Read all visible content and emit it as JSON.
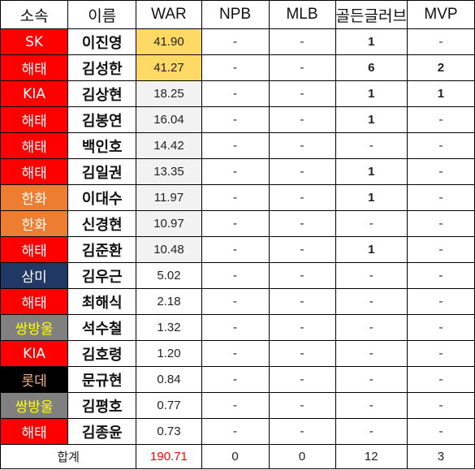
{
  "colors": {
    "red": "#FF0000",
    "orange": "#ED7D31",
    "navy": "#1F3864",
    "black": "#000000",
    "gray": "#808080",
    "yellow_text": "#FFFF00",
    "orange_text": "#F4B183",
    "gold_fill": "#FFD966",
    "light_fill": "#F2F2F2",
    "total_war_color": "#FF0000"
  },
  "headers": [
    "소속",
    "이름",
    "WAR",
    "NPB",
    "MLB",
    "골든글러브",
    "MVP"
  ],
  "rows": [
    {
      "team": "SK",
      "team_bg": "#FF0000",
      "team_fg": "#FFFFFF",
      "name": "이진영",
      "war": "41.90",
      "war_bg": "#FFD966",
      "npb": "-",
      "mlb": "-",
      "gg": "1",
      "mvp": "-"
    },
    {
      "team": "해태",
      "team_bg": "#FF0000",
      "team_fg": "#FFFFFF",
      "name": "김성한",
      "war": "41.27",
      "war_bg": "#FFD966",
      "npb": "-",
      "mlb": "-",
      "gg": "6",
      "mvp": "2"
    },
    {
      "team": "KIA",
      "team_bg": "#FF0000",
      "team_fg": "#FFFFFF",
      "name": "김상현",
      "war": "18.25",
      "war_bg": "#F2F2F2",
      "npb": "-",
      "mlb": "-",
      "gg": "1",
      "mvp": "1"
    },
    {
      "team": "해태",
      "team_bg": "#FF0000",
      "team_fg": "#FFFFFF",
      "name": "김봉연",
      "war": "16.04",
      "war_bg": "#F2F2F2",
      "npb": "-",
      "mlb": "-",
      "gg": "1",
      "mvp": "-"
    },
    {
      "team": "해태",
      "team_bg": "#FF0000",
      "team_fg": "#FFFFFF",
      "name": "백인호",
      "war": "14.42",
      "war_bg": "#F2F2F2",
      "npb": "-",
      "mlb": "-",
      "gg": "-",
      "mvp": "-"
    },
    {
      "team": "해태",
      "team_bg": "#FF0000",
      "team_fg": "#FFFFFF",
      "name": "김일권",
      "war": "13.35",
      "war_bg": "#F2F2F2",
      "npb": "-",
      "mlb": "-",
      "gg": "1",
      "mvp": "-"
    },
    {
      "team": "한화",
      "team_bg": "#ED7D31",
      "team_fg": "#FFFFFF",
      "name": "이대수",
      "war": "11.97",
      "war_bg": "#F2F2F2",
      "npb": "-",
      "mlb": "-",
      "gg": "1",
      "mvp": "-"
    },
    {
      "team": "한화",
      "team_bg": "#ED7D31",
      "team_fg": "#FFFFFF",
      "name": "신경현",
      "war": "10.97",
      "war_bg": "#F2F2F2",
      "npb": "-",
      "mlb": "-",
      "gg": "-",
      "mvp": "-"
    },
    {
      "team": "해태",
      "team_bg": "#FF0000",
      "team_fg": "#FFFFFF",
      "name": "김준환",
      "war": "10.48",
      "war_bg": "#F2F2F2",
      "npb": "-",
      "mlb": "-",
      "gg": "1",
      "mvp": "-"
    },
    {
      "team": "삼미",
      "team_bg": "#1F3864",
      "team_fg": "#FFFFFF",
      "name": "김우근",
      "war": "5.02",
      "war_bg": "#FFFFFF",
      "npb": "-",
      "mlb": "-",
      "gg": "-",
      "mvp": "-"
    },
    {
      "team": "해태",
      "team_bg": "#FF0000",
      "team_fg": "#FFFFFF",
      "name": "최해식",
      "war": "2.18",
      "war_bg": "#FFFFFF",
      "npb": "-",
      "mlb": "-",
      "gg": "-",
      "mvp": "-"
    },
    {
      "team": "쌍방울",
      "team_bg": "#808080",
      "team_fg": "#FFFF00",
      "name": "석수철",
      "war": "1.32",
      "war_bg": "#FFFFFF",
      "npb": "-",
      "mlb": "-",
      "gg": "-",
      "mvp": "-"
    },
    {
      "team": "KIA",
      "team_bg": "#FF0000",
      "team_fg": "#FFFFFF",
      "name": "김호령",
      "war": "1.20",
      "war_bg": "#FFFFFF",
      "npb": "-",
      "mlb": "-",
      "gg": "-",
      "mvp": "-"
    },
    {
      "team": "롯데",
      "team_bg": "#000000",
      "team_fg": "#F4B183",
      "name": "문규현",
      "war": "0.84",
      "war_bg": "#FFFFFF",
      "npb": "-",
      "mlb": "-",
      "gg": "-",
      "mvp": "-"
    },
    {
      "team": "쌍방울",
      "team_bg": "#808080",
      "team_fg": "#FFFF00",
      "name": "김평호",
      "war": "0.77",
      "war_bg": "#FFFFFF",
      "npb": "-",
      "mlb": "-",
      "gg": "-",
      "mvp": "-"
    },
    {
      "team": "해태",
      "team_bg": "#FF0000",
      "team_fg": "#FFFFFF",
      "name": "김종윤",
      "war": "0.73",
      "war_bg": "#FFFFFF",
      "npb": "-",
      "mlb": "-",
      "gg": "-",
      "mvp": "-"
    }
  ],
  "total": {
    "label": "합계",
    "war": "190.71",
    "npb": "0",
    "mlb": "0",
    "gg": "12",
    "mvp": "3"
  }
}
